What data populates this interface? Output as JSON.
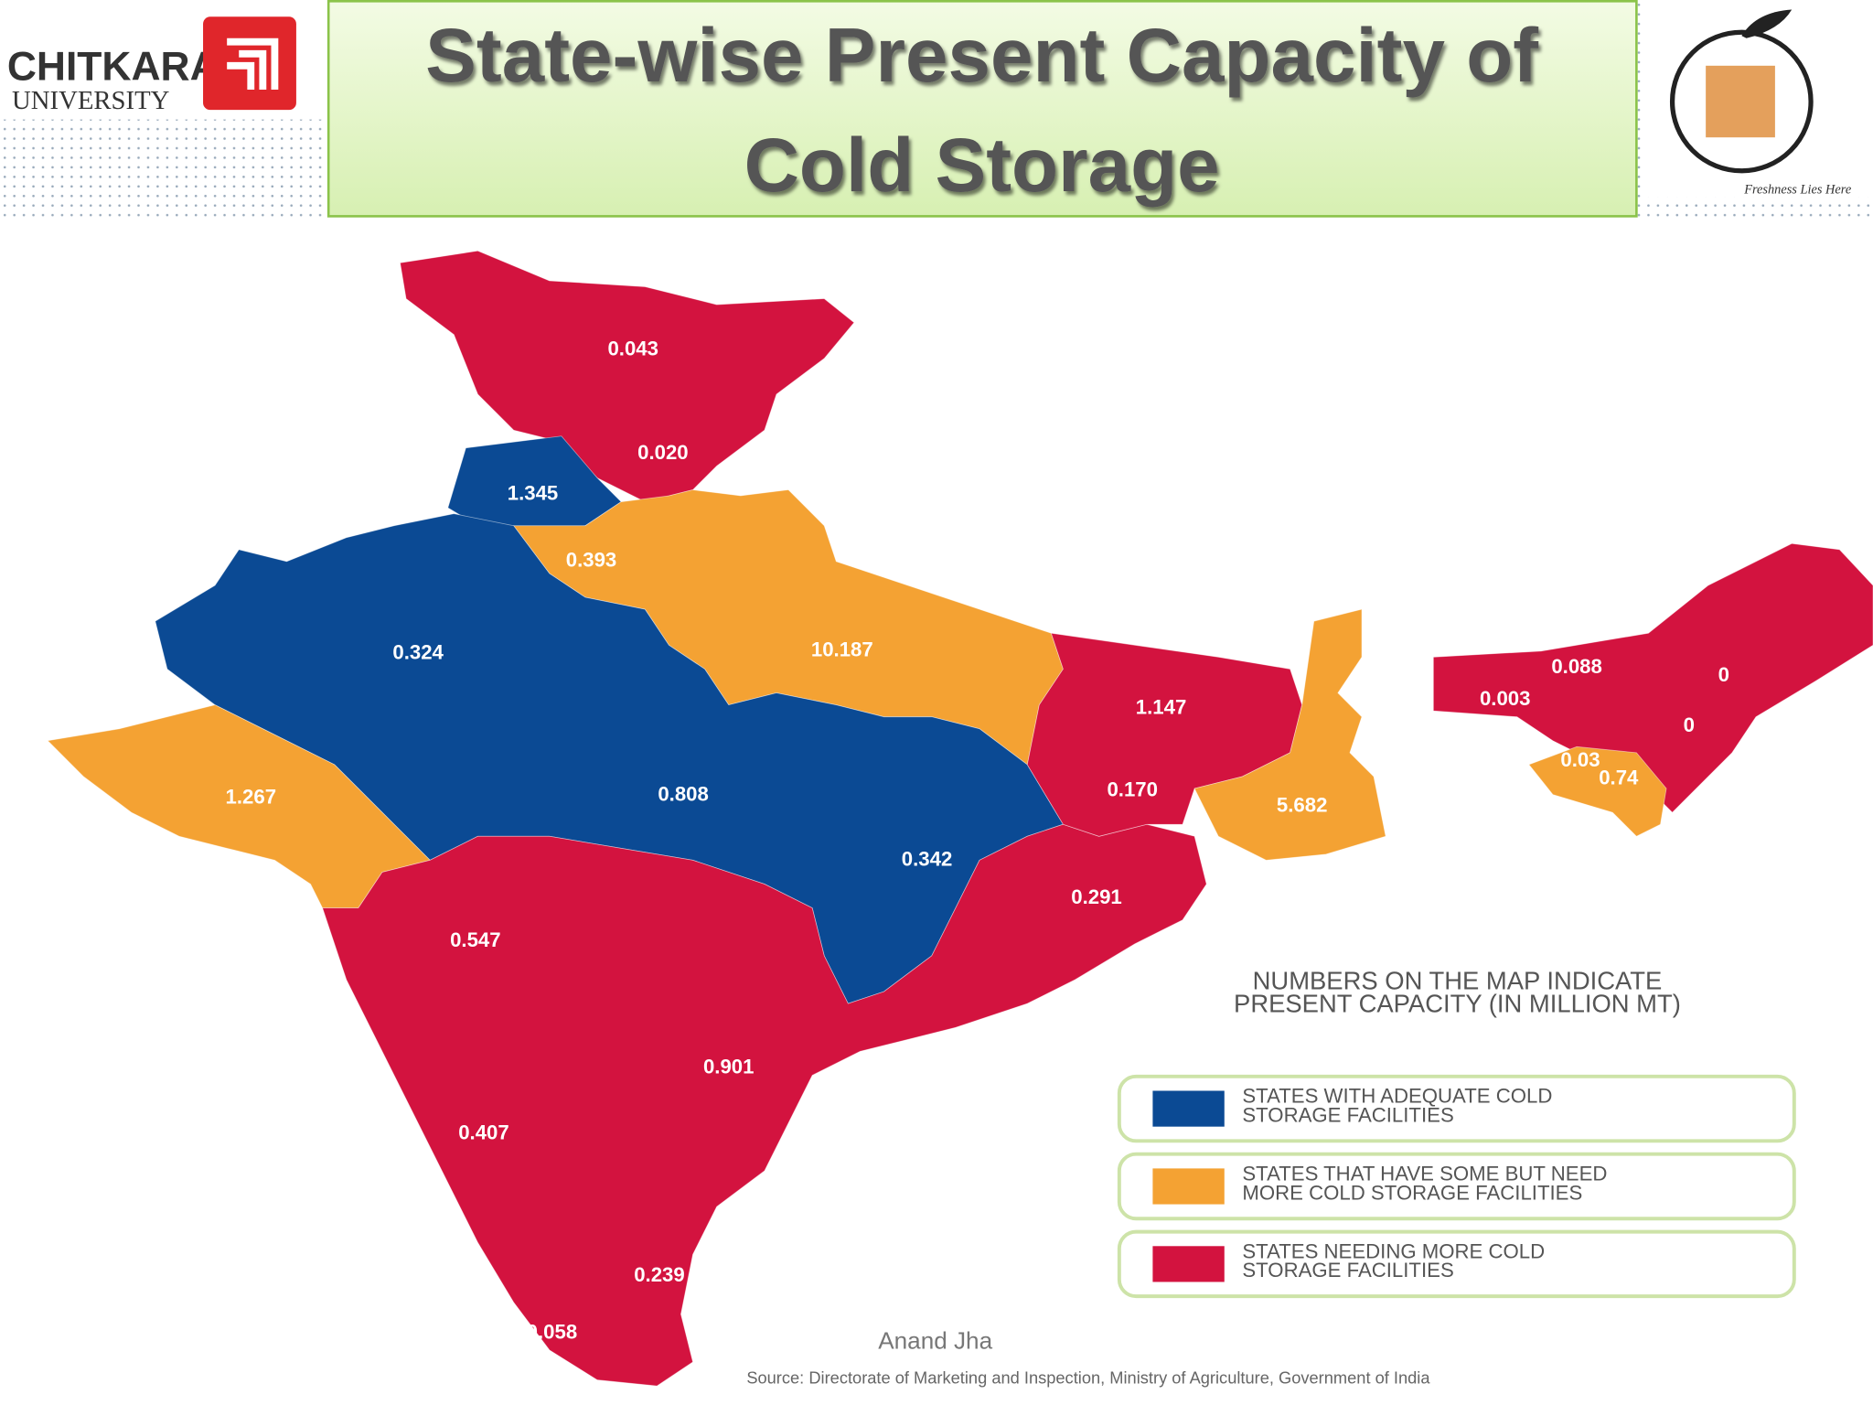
{
  "header": {
    "title_lines": [
      "State-wise Present Capacity of",
      "Cold Storage"
    ],
    "logo_left": {
      "name": "CHITKARA",
      "sub": "UNIVERSITY"
    },
    "logo_right": {
      "tagline": "Freshness Lies Here"
    }
  },
  "map": {
    "note_lines": [
      "NUMBERS ON THE MAP INDICATE",
      "PRESENT CAPACITY (IN MILLION MT)"
    ],
    "legend": [
      {
        "lines": [
          "STATES WITH ADEQUATE COLD",
          "STORAGE FACILITIES"
        ],
        "color": "#0b4a94"
      },
      {
        "lines": [
          "STATES THAT HAVE SOME BUT NEED",
          "MORE COLD STORAGE FACILITIES"
        ],
        "color": "#f4a233"
      },
      {
        "lines": [
          "STATES NEEDING MORE COLD",
          "STORAGE FACILITIES"
        ],
        "color": "#d3133f"
      }
    ],
    "regions": [
      {
        "label": "0.043",
        "category": 2
      },
      {
        "label": "0.020",
        "category": 2
      },
      {
        "label": "1.345",
        "category": 0
      },
      {
        "label": "0.393",
        "category": 1
      },
      {
        "label": "0.324",
        "category": 0
      },
      {
        "label": "10.187",
        "category": 1
      },
      {
        "label": "1.147",
        "category": 2
      },
      {
        "label": "0.088",
        "category": 2
      },
      {
        "label": "0",
        "category": 2
      },
      {
        "label": "0.003",
        "category": 2
      },
      {
        "label": "0",
        "category": 2
      },
      {
        "label": "0.03",
        "category": 1
      },
      {
        "label": "0.74",
        "category": 1
      },
      {
        "label": "1.267",
        "category": 1
      },
      {
        "label": "0.808",
        "category": 0
      },
      {
        "label": "0.170",
        "category": 2
      },
      {
        "label": "5.682",
        "category": 1
      },
      {
        "label": "0.342",
        "category": 0
      },
      {
        "label": "0.291",
        "category": 2
      },
      {
        "label": "0.547",
        "category": 2
      },
      {
        "label": "0.901",
        "category": 2
      },
      {
        "label": "0.407",
        "category": 2
      },
      {
        "label": "0.239",
        "category": 2
      },
      {
        "label": "0.058",
        "category": 2
      }
    ]
  },
  "footer": {
    "author": "Anand Jha",
    "source": "Source: Directorate of Marketing and Inspection, Ministry of Agriculture, Government of India"
  }
}
